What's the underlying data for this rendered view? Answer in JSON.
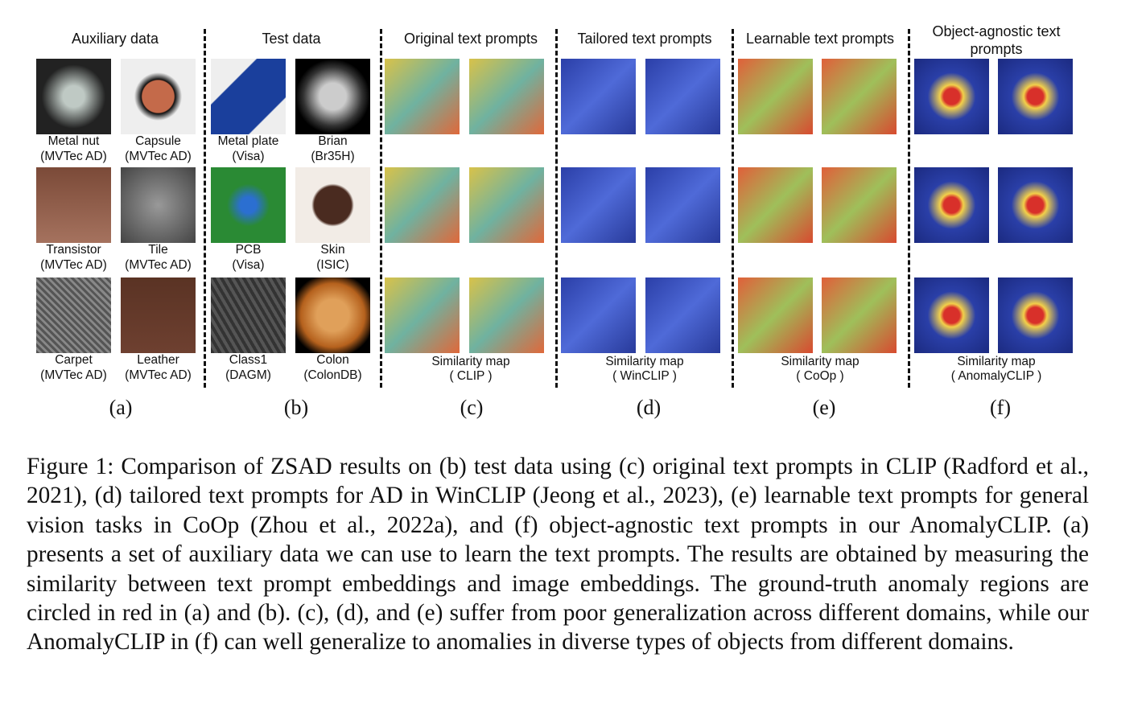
{
  "panels": [
    {
      "header": "Auxiliary data",
      "letter": "(a)",
      "items": [
        {
          "label": "Metal nut",
          "source": "(MVTec AD)"
        },
        {
          "label": "Capsule",
          "source": "(MVTec AD)"
        },
        {
          "label": "Transistor",
          "source": "(MVTec AD)"
        },
        {
          "label": "Tile",
          "source": "(MVTec AD)"
        },
        {
          "label": "Carpet",
          "source": "(MVTec AD)"
        },
        {
          "label": "Leather",
          "source": "(MVTec AD)"
        }
      ]
    },
    {
      "header": "Test data",
      "letter": "(b)",
      "items": [
        {
          "label": "Metal plate",
          "source": "(Visa)"
        },
        {
          "label": "Brian",
          "source": "(Br35H)"
        },
        {
          "label": "PCB",
          "source": "(Visa)"
        },
        {
          "label": "Skin",
          "source": "(ISIC)"
        },
        {
          "label": "Class1",
          "source": "(DAGM)"
        },
        {
          "label": "Colon",
          "source": "(ColonDB)"
        }
      ]
    },
    {
      "header": "Original  text prompts",
      "letter": "(c)",
      "footer": "Similarity map",
      "method": "( CLIP )"
    },
    {
      "header": "Tailored text prompts",
      "letter": "(d)",
      "footer": "Similarity map",
      "method": "( WinCLIP )"
    },
    {
      "header": "Learnable text prompts",
      "letter": "(e)",
      "footer": "Similarity map",
      "method": "( CoOp )"
    },
    {
      "header": "Object-agnostic text prompts",
      "letter": "(f)",
      "footer": "Similarity map",
      "method": "( AnomalyCLIP )"
    }
  ],
  "caption": "Figure 1: Comparison of ZSAD results on (b) test data using (c) original text prompts in CLIP (Radford et al., 2021), (d) tailored text prompts for AD in WinCLIP (Jeong et al., 2023), (e) learnable text prompts for general vision tasks in CoOp (Zhou et al., 2022a), and (f) object-agnostic text prompts in our AnomalyCLIP. (a) presents a set of auxiliary data we can use to learn the text prompts. The results are obtained by measuring the similarity between text prompt embeddings and image embeddings. The ground-truth anomaly regions are circled in red in (a) and (b). (c), (d), and (e) suffer from poor generalization across different domains, while our AnomalyCLIP in (f) can well generalize to anomalies in diverse types of objects from different domains."
}
